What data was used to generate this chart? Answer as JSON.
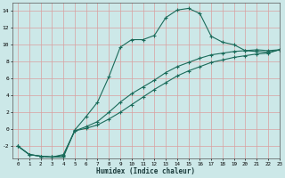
{
  "title": "",
  "xlabel": "Humidex (Indice chaleur)",
  "bg_color": "#cce8e8",
  "grid_color": "#d9a0a0",
  "line_color": "#1a6b5a",
  "xlim": [
    -0.5,
    23
  ],
  "ylim": [
    -3.5,
    15.0
  ],
  "yticks": [
    -2,
    0,
    2,
    4,
    6,
    8,
    10,
    12,
    14
  ],
  "xticks": [
    0,
    1,
    2,
    3,
    4,
    5,
    6,
    7,
    8,
    9,
    10,
    11,
    12,
    13,
    14,
    15,
    16,
    17,
    18,
    19,
    20,
    21,
    22,
    23
  ],
  "curve1_x": [
    0,
    1,
    2,
    3,
    4,
    5,
    6,
    7,
    8,
    9,
    10,
    11,
    12,
    13,
    14,
    15,
    16,
    17,
    18,
    19,
    20,
    21,
    22,
    23
  ],
  "curve1_y": [
    -2.0,
    -3.0,
    -3.2,
    -3.3,
    -3.3,
    -0.1,
    1.5,
    3.2,
    6.2,
    9.7,
    10.6,
    10.6,
    11.1,
    13.2,
    14.1,
    14.3,
    13.7,
    11.0,
    10.3,
    10.0,
    9.3,
    9.2,
    9.1,
    9.4
  ],
  "curve2_x": [
    0,
    1,
    2,
    3,
    4,
    5,
    6,
    7,
    8,
    9,
    10,
    11,
    12,
    13,
    14,
    15,
    16,
    17,
    18,
    19,
    20,
    21,
    22,
    23
  ],
  "curve2_y": [
    -2.0,
    -3.0,
    -3.2,
    -3.3,
    -3.1,
    -0.2,
    0.3,
    0.9,
    2.0,
    3.2,
    4.2,
    5.0,
    5.8,
    6.7,
    7.4,
    7.9,
    8.4,
    8.8,
    9.0,
    9.2,
    9.3,
    9.4,
    9.3,
    9.4
  ],
  "curve3_x": [
    0,
    1,
    2,
    3,
    4,
    5,
    6,
    7,
    8,
    9,
    10,
    11,
    12,
    13,
    14,
    15,
    16,
    17,
    18,
    19,
    20,
    21,
    22,
    23
  ],
  "curve3_y": [
    -2.0,
    -3.0,
    -3.2,
    -3.3,
    -3.0,
    -0.2,
    0.1,
    0.5,
    1.2,
    2.0,
    2.9,
    3.8,
    4.7,
    5.5,
    6.3,
    6.9,
    7.4,
    7.9,
    8.2,
    8.5,
    8.7,
    8.9,
    9.0,
    9.4
  ]
}
